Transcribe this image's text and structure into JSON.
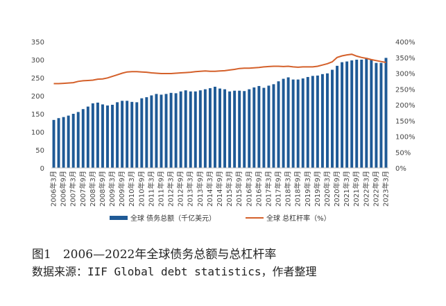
{
  "chart_data": {
    "type": "bar",
    "categories": [
      "2006年3月",
      "2006年6月",
      "2006年9月",
      "2006年12月",
      "2007年3月",
      "2007年6月",
      "2007年9月",
      "2007年12月",
      "2008年3月",
      "2008年6月",
      "2008年9月",
      "2008年12月",
      "2009年3月",
      "2009年6月",
      "2009年9月",
      "2009年12月",
      "2010年3月",
      "2010年6月",
      "2010年9月",
      "2010年12月",
      "2011年3月",
      "2011年6月",
      "2011年9月",
      "2011年12月",
      "2012年3月",
      "2012年6月",
      "2012年9月",
      "2012年12月",
      "2013年3月",
      "2013年6月",
      "2013年9月",
      "2013年12月",
      "2014年3月",
      "2014年6月",
      "2014年9月",
      "2014年12月",
      "2015年3月",
      "2015年6月",
      "2015年9月",
      "2015年12月",
      "2016年3月",
      "2016年6月",
      "2016年9月",
      "2016年12月",
      "2017年3月",
      "2017年6月",
      "2017年9月",
      "2017年12月",
      "2018年3月",
      "2018年6月",
      "2018年9月",
      "2018年12月",
      "2019年3月",
      "2019年6月",
      "2019年9月",
      "2019年12月",
      "2020年3月",
      "2020年6月",
      "2020年9月",
      "2020年12月",
      "2021年3月",
      "2021年6月",
      "2021年9月",
      "2021年12月",
      "2022年3月",
      "2022年6月",
      "2022年9月",
      "2022年12月",
      "2023年3月"
    ],
    "x_tick_labels": [
      "2006年3月",
      "2006年9月",
      "2007年3月",
      "2007年9月",
      "2008年3月",
      "2008年9月",
      "2009年3月",
      "2009年9月",
      "2010年3月",
      "2010年9月",
      "2011年3月",
      "2011年9月",
      "2012年3月",
      "2012年9月",
      "2013年3月",
      "2013年9月",
      "2014年3月",
      "2014年9月",
      "2015年3月",
      "2015年9月",
      "2016年3月",
      "2016年9月",
      "2017年3月",
      "2017年9月",
      "2018年3月",
      "2018年9月",
      "2019年3月",
      "2019年9月",
      "2020年3月",
      "2020年9月",
      "2021年3月",
      "2021年9月",
      "2022年3月",
      "2022年9月",
      "2023年3月"
    ],
    "series": [
      {
        "name": "全球 债务总额（千亿美元）",
        "type": "bar",
        "axis": "left",
        "color": "#1f5a96",
        "values": [
          133,
          138,
          141,
          145,
          150,
          155,
          163,
          170,
          179,
          181,
          176,
          173,
          175,
          182,
          186,
          186,
          183,
          182,
          193,
          196,
          201,
          205,
          203,
          205,
          208,
          207,
          212,
          215,
          212,
          212,
          215,
          218,
          221,
          225,
          220,
          218,
          212,
          214,
          214,
          213,
          218,
          223,
          227,
          222,
          228,
          232,
          240,
          247,
          251,
          245,
          245,
          248,
          252,
          255,
          256,
          260,
          262,
          272,
          283,
          293,
          295,
          298,
          300,
          300,
          305,
          300,
          291,
          291,
          305
        ]
      },
      {
        "name": "全球 总杠杆率（%）",
        "type": "line",
        "axis": "right",
        "color": "#d4602a",
        "values": [
          267,
          267,
          268,
          269,
          270,
          274,
          276,
          277,
          278,
          281,
          282,
          285,
          290,
          295,
          300,
          304,
          305,
          305,
          304,
          303,
          301,
          300,
          299,
          299,
          299,
          300,
          301,
          302,
          303,
          305,
          306,
          307,
          306,
          306,
          307,
          308,
          310,
          312,
          315,
          316,
          316,
          317,
          318,
          320,
          321,
          322,
          322,
          321,
          322,
          320,
          319,
          320,
          320,
          320,
          322,
          326,
          330,
          336,
          350,
          355,
          358,
          360,
          354,
          350,
          347,
          343,
          340,
          337,
          334
        ]
      }
    ],
    "y_left": {
      "ylim": [
        0,
        350
      ],
      "ticks": [
        "0",
        "50",
        "100",
        "150",
        "200",
        "250",
        "300",
        "350"
      ]
    },
    "y_right": {
      "ylim": [
        0,
        400
      ],
      "ticks": [
        "0%",
        "50%",
        "100%",
        "150%",
        "200%",
        "250%",
        "300%",
        "350%",
        "400%"
      ]
    },
    "grid": false,
    "legend_position": "bottom"
  },
  "caption": {
    "title": "图1　2006—2022年全球债务总额与总杠杆率",
    "source": "数据来源：IIF Global debt statistics，作者整理"
  },
  "legend": {
    "bar_label": "全球 债务总额（千亿美元）",
    "line_label": "全球 总杠杆率（%）"
  }
}
